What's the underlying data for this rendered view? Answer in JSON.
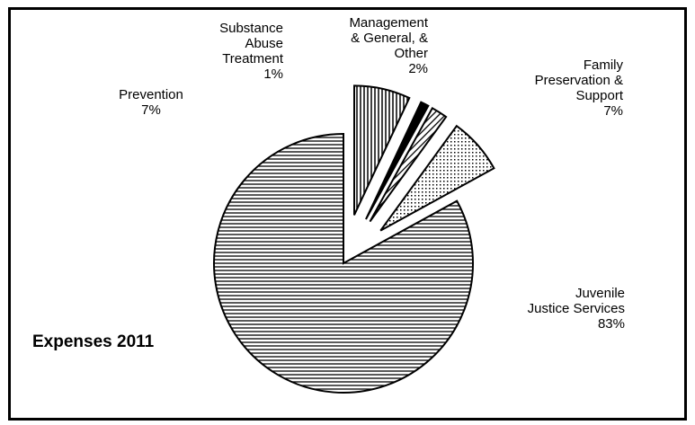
{
  "chart_data": {
    "type": "pie",
    "title": "Expenses  2011",
    "slices": [
      {
        "name": "Juvenile Justice Services",
        "percent_label": "83%",
        "value": 83,
        "label_lines": [
          "Juvenile",
          "Justice Services",
          "83%"
        ]
      },
      {
        "name": "Prevention",
        "percent_label": "7%",
        "value": 7,
        "label_lines": [
          "Prevention",
          "7%"
        ]
      },
      {
        "name": "Substance Abuse Treatment",
        "percent_label": "1%",
        "value": 1,
        "label_lines": [
          "Substance",
          "Abuse",
          "Treatment",
          "1%"
        ]
      },
      {
        "name": "Management & General, & Other",
        "percent_label": "2%",
        "value": 2,
        "label_lines": [
          "Management",
          "& General, &",
          "Other",
          "2%"
        ]
      },
      {
        "name": "Family Preservation & Support",
        "percent_label": "7%",
        "value": 7,
        "label_lines": [
          "Family",
          "Preservation &",
          "Support",
          "7%"
        ]
      }
    ],
    "legend": "none",
    "colors": {
      "fill": "#ffffff",
      "stroke": "#000000"
    }
  }
}
